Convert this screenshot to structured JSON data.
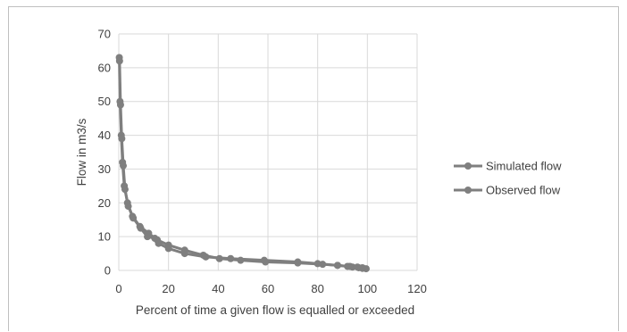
{
  "chart_data": {
    "type": "line",
    "title": "",
    "xlabel": "Percent of time a given flow is equalled or exceeded",
    "ylabel": "Flow in m3/s",
    "xlim": [
      0,
      120
    ],
    "ylim": [
      0,
      70
    ],
    "xticks": [
      0,
      20,
      40,
      60,
      80,
      100,
      120
    ],
    "yticks": [
      0,
      10,
      20,
      30,
      40,
      50,
      60,
      70
    ],
    "grid": true,
    "legend_position": "right",
    "series": [
      {
        "name": "Simulated flow",
        "color": "#7f7f7f",
        "x": [
          0.2,
          0.5,
          1.0,
          1.5,
          2.2,
          3.5,
          5.5,
          8.5,
          12.0,
          15.5,
          20.0,
          26.5,
          34.0,
          40.5,
          49.0,
          59.0,
          72.0,
          82.0,
          88.0,
          92.0,
          94.0,
          96.5,
          98.0,
          99.5
        ],
        "y": [
          63,
          50,
          40,
          32,
          25,
          20,
          16,
          13,
          11,
          9,
          7.5,
          6,
          4.5,
          3.5,
          3,
          2.5,
          2.2,
          1.8,
          1.5,
          1.2,
          1,
          0.8,
          0.6,
          0.5
        ]
      },
      {
        "name": "Observed flow",
        "color": "#7f7f7f",
        "x": [
          0.3,
          0.7,
          1.2,
          1.8,
          2.5,
          3.8,
          5.8,
          8.8,
          11.5,
          14.5,
          16.0,
          20.0,
          26.5,
          35.0,
          45.0,
          58.5,
          72.0,
          80.0,
          88.0,
          93.0,
          96.0,
          98.0
        ],
        "y": [
          62,
          49,
          39,
          31,
          24,
          19,
          15.5,
          12.5,
          10,
          9.5,
          8,
          6.5,
          5,
          4,
          3.5,
          3,
          2.5,
          2,
          1.5,
          1.2,
          1,
          0.8
        ]
      }
    ]
  }
}
